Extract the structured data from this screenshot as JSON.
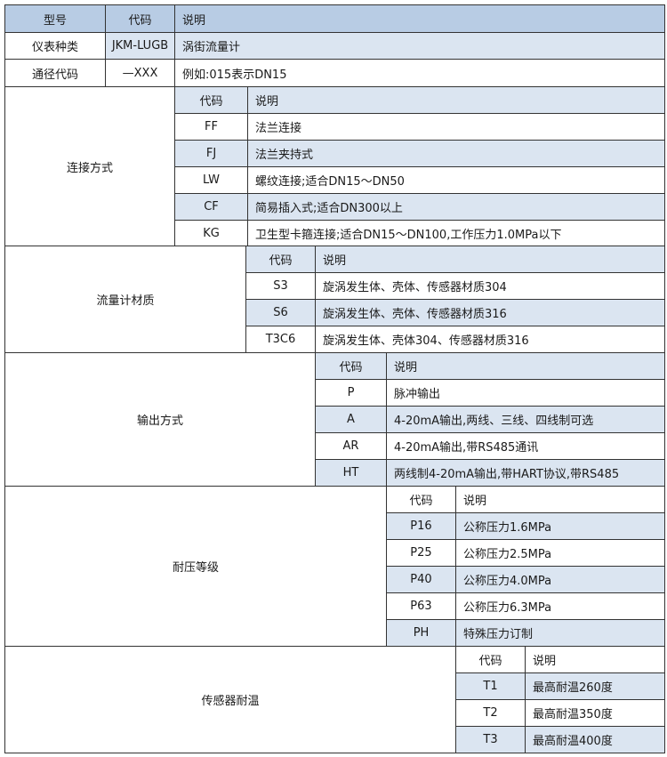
{
  "colors": {
    "header": "#b8cce4",
    "shaded": "#dbe5f1",
    "border": "#333333"
  },
  "top": {
    "header": {
      "model": "型号",
      "code": "代码",
      "desc": "说明"
    },
    "rows": [
      {
        "label": "仪表种类",
        "code": "JKM-LUGB",
        "desc": "涡街流量计"
      },
      {
        "label": "通径代码",
        "code": "—XXX",
        "desc": "例如:015表示DN15"
      }
    ]
  },
  "sections": [
    {
      "label": "连接方式",
      "code_header": "代码",
      "desc_header": "说明",
      "rows": [
        {
          "code": "FF",
          "desc": "法兰连接"
        },
        {
          "code": "FJ",
          "desc": "法兰夹持式"
        },
        {
          "code": "LW",
          "desc": "螺纹连接;适合DN15～DN50"
        },
        {
          "code": "CF",
          "desc": "简易插入式;适合DN300以上"
        },
        {
          "code": "KG",
          "desc": "卫生型卡箍连接;适合DN15～DN100,工作压力1.0MPa以下"
        }
      ]
    },
    {
      "label": "流量计材质",
      "code_header": "代码",
      "desc_header": "说明",
      "rows": [
        {
          "code": "S3",
          "desc": "旋涡发生体、壳体、传感器材质304"
        },
        {
          "code": "S6",
          "desc": "旋涡发生体、壳体、传感器材质316"
        },
        {
          "code": "T3C6",
          "desc": "旋涡发生体、壳体304、传感器材质316"
        }
      ]
    },
    {
      "label": "输出方式",
      "code_header": "代码",
      "desc_header": "说明",
      "rows": [
        {
          "code": "P",
          "desc": "脉冲输出"
        },
        {
          "code": "A",
          "desc": "4-20mA输出,两线、三线、四线制可选"
        },
        {
          "code": "AR",
          "desc": "4-20mA输出,带RS485通讯"
        },
        {
          "code": "HT",
          "desc": "两线制4-20mA输出,带HART协议,带RS485"
        }
      ]
    },
    {
      "label": "耐压等级",
      "code_header": "代码",
      "desc_header": "说明",
      "rows": [
        {
          "code": "P16",
          "desc": "公称压力1.6MPa"
        },
        {
          "code": "P25",
          "desc": "公称压力2.5MPa"
        },
        {
          "code": "P40",
          "desc": "公称压力4.0MPa"
        },
        {
          "code": "P63",
          "desc": "公称压力6.3MPa"
        },
        {
          "code": "PH",
          "desc": "特殊压力订制"
        }
      ]
    },
    {
      "label": "传感器耐温",
      "code_header": "代码",
      "desc_header": "说明",
      "rows": [
        {
          "code": "T1",
          "desc": "最高耐温260度"
        },
        {
          "code": "T2",
          "desc": "最高耐温350度"
        },
        {
          "code": "T3",
          "desc": "最高耐温400度"
        }
      ]
    }
  ]
}
